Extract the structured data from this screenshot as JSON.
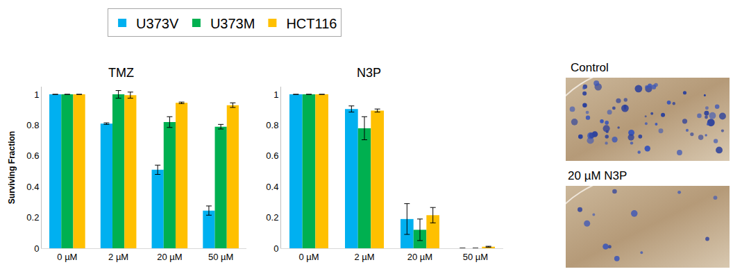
{
  "chart_data": [
    {
      "type": "bar",
      "title": "TMZ",
      "y_label": "Surviving Fraction",
      "categories": [
        "0 µM",
        "2 µM",
        "20 µM",
        "50 µM"
      ],
      "series": [
        {
          "name": "U373V",
          "color": "#00b0f0",
          "values": [
            1,
            0.81,
            0.51,
            0.245
          ],
          "errors": [
            0,
            0.005,
            0.03,
            0.03
          ]
        },
        {
          "name": "U373M",
          "color": "#00b050",
          "values": [
            1,
            1.0,
            0.82,
            0.79
          ],
          "errors": [
            0,
            0.025,
            0.035,
            0.015
          ]
        },
        {
          "name": "HCT116",
          "color": "#ffc000",
          "values": [
            1,
            0.995,
            0.945,
            0.93
          ],
          "errors": [
            0,
            0.02,
            0.005,
            0.015
          ]
        }
      ],
      "ylim": [
        0,
        1.05
      ],
      "yticks": [
        0,
        0.2,
        0.4,
        0.6,
        0.8,
        1
      ],
      "grid": false,
      "legend": "top"
    },
    {
      "type": "bar",
      "title": "N3P",
      "categories": [
        "0 µM",
        "2 µM",
        "20 µM",
        "50 µM"
      ],
      "series": [
        {
          "name": "U373V",
          "color": "#00b0f0",
          "values": [
            1,
            0.905,
            0.19,
            0
          ],
          "errors": [
            0,
            0.02,
            0.1,
            0
          ]
        },
        {
          "name": "U373M",
          "color": "#00b050",
          "values": [
            1,
            0.78,
            0.12,
            0
          ],
          "errors": [
            0,
            0.075,
            0.07,
            0
          ]
        },
        {
          "name": "HCT116",
          "color": "#ffc000",
          "values": [
            1,
            0.895,
            0.215,
            0.01
          ],
          "errors": [
            0,
            0.01,
            0.05,
            0.003
          ]
        }
      ],
      "ylim": [
        0,
        1.05
      ],
      "yticks": [
        0,
        0.2,
        0.4,
        0.6,
        0.8,
        1
      ],
      "grid": false
    }
  ],
  "images": [
    {
      "label": "Control"
    },
    {
      "label": "20 µM N3P"
    }
  ]
}
